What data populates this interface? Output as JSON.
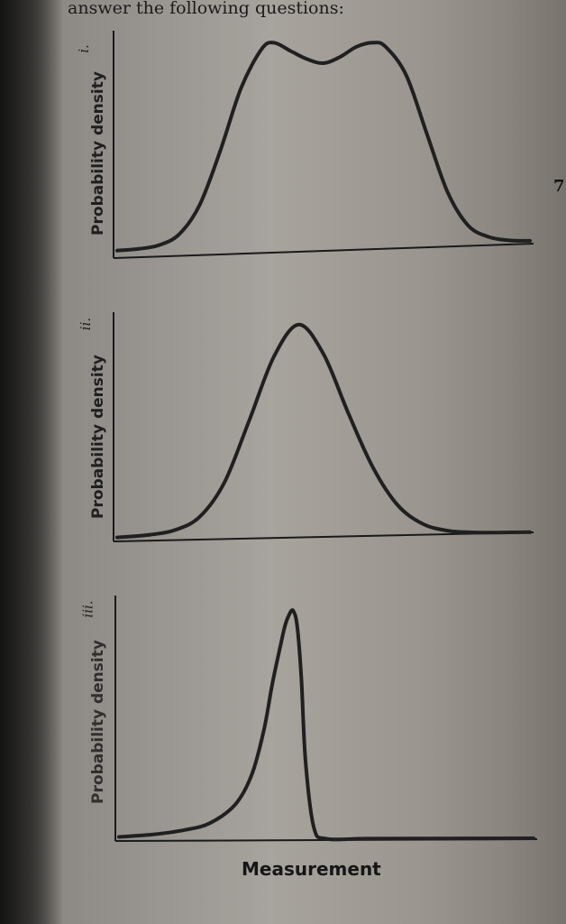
{
  "page": {
    "header_text": "answer the following questions:",
    "margin_number": "7"
  },
  "chart_data": [
    {
      "type": "line",
      "label": "i.",
      "xlabel": "",
      "ylabel": "Probability density",
      "grid": false,
      "x": [
        0,
        0.05,
        0.1,
        0.15,
        0.2,
        0.25,
        0.3,
        0.35,
        0.38,
        0.42,
        0.46,
        0.5,
        0.54,
        0.58,
        0.62,
        0.65,
        0.7,
        0.75,
        0.8,
        0.85,
        0.9,
        0.95,
        1
      ],
      "values": [
        0.01,
        0.015,
        0.03,
        0.08,
        0.22,
        0.48,
        0.78,
        0.97,
        1.0,
        0.96,
        0.92,
        0.9,
        0.93,
        0.98,
        1.0,
        0.98,
        0.84,
        0.55,
        0.26,
        0.09,
        0.03,
        0.01,
        0.005
      ],
      "ylim": [
        0,
        1.05
      ],
      "xlim": [
        0,
        1
      ]
    },
    {
      "type": "line",
      "label": "ii.",
      "xlabel": "",
      "ylabel": "Probability density",
      "grid": false,
      "x": [
        0,
        0.08,
        0.14,
        0.2,
        0.26,
        0.32,
        0.38,
        0.44,
        0.5,
        0.56,
        0.62,
        0.68,
        0.74,
        0.8,
        0.86,
        0.92,
        1
      ],
      "values": [
        0.01,
        0.02,
        0.04,
        0.1,
        0.26,
        0.55,
        0.85,
        1.0,
        0.86,
        0.58,
        0.32,
        0.14,
        0.05,
        0.015,
        0.005,
        0.002,
        0.001
      ],
      "ylim": [
        0,
        1.05
      ],
      "xlim": [
        0,
        1
      ]
    },
    {
      "type": "line",
      "label": "iii.",
      "xlabel": "Measurement",
      "ylabel": "Probability density",
      "grid": false,
      "x": [
        0,
        0.08,
        0.16,
        0.22,
        0.28,
        0.32,
        0.35,
        0.37,
        0.39,
        0.4,
        0.41,
        0.42,
        0.43,
        0.44,
        0.45,
        0.47,
        0.5,
        0.6,
        0.8,
        1
      ],
      "values": [
        0.01,
        0.02,
        0.04,
        0.07,
        0.15,
        0.28,
        0.48,
        0.68,
        0.85,
        0.93,
        0.98,
        1.0,
        0.93,
        0.7,
        0.34,
        0.05,
        0.0,
        0.0,
        0.0,
        0.0
      ],
      "ylim": [
        0,
        1.05
      ],
      "xlim": [
        0,
        1
      ]
    }
  ]
}
